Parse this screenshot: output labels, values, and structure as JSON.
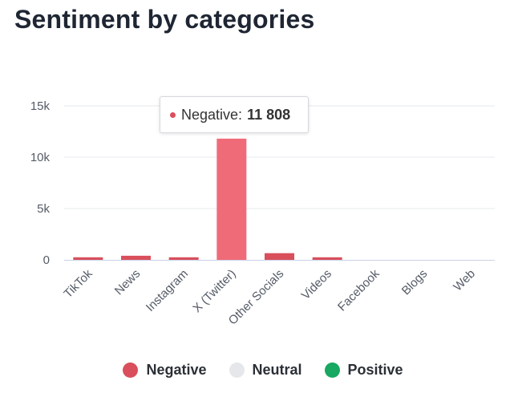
{
  "title": "Sentiment by categories",
  "tooltip": {
    "series": "Negative",
    "value_text": "11 808",
    "separator": ":"
  },
  "legend": [
    {
      "name": "Negative",
      "color": "#d94f5c"
    },
    {
      "name": "Neutral",
      "color": "#e5e7ea"
    },
    {
      "name": "Positive",
      "color": "#17a862"
    }
  ],
  "colors": {
    "negative": "#d94f5c",
    "negative_hover": "#f06b78",
    "grid": "#e6e8eb",
    "axis": "#c9d1e6"
  },
  "chart_data": {
    "type": "bar",
    "categories": [
      "TikTok",
      "News",
      "Instagram",
      "X (Twitter)",
      "Other Socials",
      "Videos",
      "Facebook",
      "Blogs",
      "Web"
    ],
    "series": [
      {
        "name": "Negative",
        "values": [
          250,
          400,
          250,
          11808,
          650,
          250,
          0,
          0,
          0
        ]
      },
      {
        "name": "Neutral",
        "values": [
          0,
          0,
          0,
          0,
          0,
          0,
          0,
          0,
          0
        ]
      },
      {
        "name": "Positive",
        "values": [
          0,
          0,
          0,
          0,
          0,
          0,
          0,
          0,
          0
        ]
      }
    ],
    "yticks": [
      "0",
      "5k",
      "10k",
      "15k"
    ],
    "ytick_values": [
      0,
      5000,
      10000,
      15000
    ],
    "ylim": [
      0,
      15000
    ],
    "highlight_index": 3,
    "grid": true,
    "legend_position": "bottom"
  }
}
